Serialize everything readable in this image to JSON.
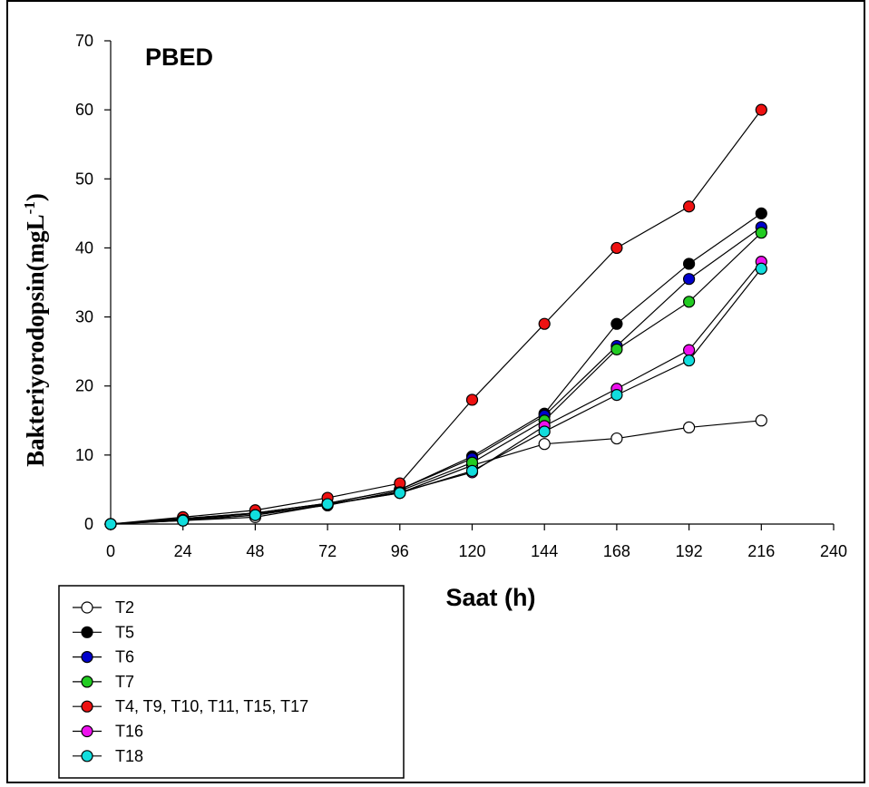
{
  "chart_data": {
    "type": "line",
    "title": "PBED",
    "xlabel": "Saat (h)",
    "ylabel": "Bakteriyorodopsin(mgL",
    "ylabel_sup": "-1",
    "ylabel_close": ")",
    "xlim": [
      0,
      240
    ],
    "ylim": [
      0,
      70
    ],
    "x_ticks": [
      "0",
      "24",
      "48",
      "72",
      "96",
      "120",
      "144",
      "168",
      "192",
      "216",
      "240"
    ],
    "y_ticks": [
      "0",
      "10",
      "20",
      "30",
      "40",
      "50",
      "60",
      "70"
    ],
    "x": [
      0,
      24,
      48,
      72,
      96,
      120,
      144,
      168,
      192,
      216
    ],
    "grid": false,
    "legend_position": "bottom-left",
    "series": [
      {
        "name": "T2",
        "color": "#ffffff",
        "values": [
          0,
          0.5,
          1.0,
          2.8,
          4.5,
          8.5,
          11.6,
          12.4,
          14.0,
          15.0
        ]
      },
      {
        "name": "T5",
        "color": "#000000",
        "values": [
          0,
          0.8,
          1.6,
          3.0,
          5.0,
          9.8,
          16.0,
          29.0,
          37.7,
          45.0
        ]
      },
      {
        "name": "T6",
        "color": "#0000cc",
        "values": [
          0,
          0.8,
          1.6,
          3.0,
          5.0,
          9.5,
          15.7,
          25.8,
          35.5,
          43.0
        ]
      },
      {
        "name": "T7",
        "color": "#22cc22",
        "values": [
          0,
          0.7,
          1.5,
          2.7,
          4.8,
          8.9,
          15.0,
          25.3,
          32.2,
          42.2
        ]
      },
      {
        "name": "T4, T9, T10, T11, T15, T17",
        "color": "#ee1111",
        "values": [
          0,
          1.0,
          2.0,
          3.8,
          5.9,
          18.0,
          29.0,
          40.0,
          46.0,
          60.0
        ]
      },
      {
        "name": "T16",
        "color": "#ee11ee",
        "values": [
          0,
          0.6,
          1.3,
          2.8,
          4.6,
          7.5,
          14.2,
          19.6,
          25.2,
          38.0
        ]
      },
      {
        "name": "T18",
        "color": "#11dddd",
        "values": [
          0,
          0.5,
          1.3,
          2.9,
          4.5,
          7.7,
          13.4,
          18.7,
          23.7,
          37.0
        ]
      }
    ]
  }
}
